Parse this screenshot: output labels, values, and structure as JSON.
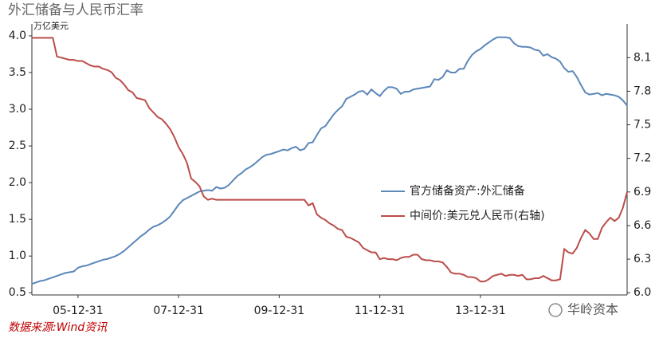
{
  "chart_data": {
    "type": "line",
    "title": "外汇储备与人民币汇率",
    "y_label": "万亿美元",
    "source": "数据来源:Wind资讯",
    "watermark": "华岭资本",
    "categories": [
      null,
      null,
      null,
      null,
      null,
      null,
      null,
      null,
      null,
      null,
      null,
      "05-12-31",
      null,
      null,
      null,
      null,
      null,
      null,
      null,
      null,
      null,
      null,
      null,
      null,
      null,
      null,
      null,
      null,
      null,
      null,
      null,
      null,
      null,
      null,
      null,
      "07-12-31",
      null,
      null,
      null,
      null,
      null,
      null,
      null,
      null,
      null,
      null,
      null,
      null,
      null,
      null,
      null,
      null,
      null,
      null,
      null,
      null,
      null,
      null,
      null,
      "09-12-31",
      null,
      null,
      null,
      null,
      null,
      null,
      null,
      null,
      null,
      null,
      null,
      null,
      null,
      null,
      null,
      null,
      null,
      null,
      null,
      null,
      null,
      null,
      null,
      "11-12-31",
      null,
      null,
      null,
      null,
      null,
      null,
      null,
      null,
      null,
      null,
      null,
      null,
      null,
      null,
      null,
      null,
      null,
      null,
      null,
      null,
      null,
      null,
      null,
      "13-12-31",
      null,
      null,
      null,
      null,
      null,
      null,
      null,
      null,
      null,
      null,
      null,
      null,
      null,
      null,
      null,
      null,
      null,
      null,
      null,
      null,
      null,
      null,
      null,
      null,
      null,
      null,
      null,
      null,
      null,
      null,
      null,
      null,
      null,
      null,
      null
    ],
    "series": [
      {
        "name": "官方储备资产:外汇储备",
        "color": "#5b87b9",
        "values": [
          0.62,
          0.64,
          0.66,
          0.67,
          0.69,
          0.71,
          0.73,
          0.75,
          0.77,
          0.78,
          0.79,
          0.84,
          0.86,
          0.87,
          0.89,
          0.91,
          0.93,
          0.95,
          0.96,
          0.98,
          1.0,
          1.03,
          1.07,
          1.12,
          1.17,
          1.22,
          1.27,
          1.31,
          1.36,
          1.4,
          1.42,
          1.45,
          1.49,
          1.54,
          1.62,
          1.7,
          1.76,
          1.79,
          1.82,
          1.85,
          1.88,
          1.89,
          1.9,
          1.89,
          1.94,
          1.92,
          1.93,
          1.97,
          2.03,
          2.09,
          2.13,
          2.18,
          2.21,
          2.25,
          2.3,
          2.35,
          2.38,
          2.39,
          2.41,
          2.43,
          2.45,
          2.44,
          2.47,
          2.49,
          2.44,
          2.46,
          2.54,
          2.55,
          2.65,
          2.74,
          2.77,
          2.85,
          2.93,
          2.99,
          3.04,
          3.14,
          3.17,
          3.2,
          3.24,
          3.25,
          3.2,
          3.27,
          3.22,
          3.18,
          3.25,
          3.3,
          3.3,
          3.28,
          3.21,
          3.24,
          3.24,
          3.27,
          3.28,
          3.29,
          3.3,
          3.31,
          3.41,
          3.4,
          3.44,
          3.53,
          3.5,
          3.5,
          3.55,
          3.55,
          3.66,
          3.74,
          3.79,
          3.82,
          3.87,
          3.91,
          3.95,
          3.98,
          3.98,
          3.98,
          3.97,
          3.9,
          3.86,
          3.85,
          3.85,
          3.84,
          3.81,
          3.8,
          3.73,
          3.75,
          3.71,
          3.69,
          3.65,
          3.56,
          3.51,
          3.52,
          3.44,
          3.33,
          3.23,
          3.2,
          3.21,
          3.22,
          3.19,
          3.21,
          3.2,
          3.19,
          3.17,
          3.12,
          3.05
        ]
      },
      {
        "name": "中间价:美元兑人民币(右轴)",
        "color": "#bb4d4a",
        "axis": "y2",
        "values": [
          8.277,
          8.277,
          8.277,
          8.277,
          8.277,
          8.277,
          8.11,
          8.1,
          8.09,
          8.08,
          8.08,
          8.07,
          8.07,
          8.05,
          8.03,
          8.02,
          8.02,
          8.0,
          7.99,
          7.97,
          7.92,
          7.9,
          7.86,
          7.81,
          7.79,
          7.74,
          7.73,
          7.72,
          7.65,
          7.61,
          7.57,
          7.55,
          7.51,
          7.46,
          7.39,
          7.3,
          7.24,
          7.16,
          7.02,
          6.99,
          6.95,
          6.86,
          6.83,
          6.84,
          6.83,
          6.83,
          6.83,
          6.83,
          6.83,
          6.83,
          6.83,
          6.83,
          6.83,
          6.83,
          6.83,
          6.83,
          6.83,
          6.83,
          6.83,
          6.83,
          6.83,
          6.83,
          6.83,
          6.83,
          6.83,
          6.83,
          6.78,
          6.8,
          6.7,
          6.67,
          6.65,
          6.62,
          6.6,
          6.57,
          6.56,
          6.5,
          6.49,
          6.47,
          6.45,
          6.4,
          6.38,
          6.36,
          6.36,
          6.3,
          6.31,
          6.3,
          6.3,
          6.29,
          6.31,
          6.32,
          6.32,
          6.34,
          6.34,
          6.3,
          6.29,
          6.29,
          6.28,
          6.28,
          6.27,
          6.23,
          6.18,
          6.17,
          6.17,
          6.16,
          6.14,
          6.14,
          6.13,
          6.1,
          6.1,
          6.12,
          6.15,
          6.16,
          6.17,
          6.15,
          6.16,
          6.16,
          6.15,
          6.16,
          6.12,
          6.12,
          6.13,
          6.13,
          6.15,
          6.13,
          6.11,
          6.11,
          6.12,
          6.39,
          6.36,
          6.35,
          6.4,
          6.49,
          6.56,
          6.53,
          6.48,
          6.48,
          6.58,
          6.63,
          6.67,
          6.64,
          6.67,
          6.76,
          6.9
        ]
      }
    ],
    "ylim": [
      0.47,
      4.13
    ],
    "yticks": [
      0.5,
      {
        "value": 1,
        "label": "1.0"
      },
      1.5,
      {
        "value": 2,
        "label": "2.0"
      },
      2.5,
      {
        "value": 3,
        "label": "3.0"
      },
      3.5,
      {
        "value": 4,
        "label": "4.0"
      }
    ],
    "y2lim": [
      5.98,
      8.38
    ],
    "y2ticks": [
      {
        "value": 6,
        "label": "6.0"
      },
      6.3,
      6.6,
      6.9,
      7.2,
      7.5,
      7.8,
      8.1
    ],
    "legend": "center-right"
  }
}
